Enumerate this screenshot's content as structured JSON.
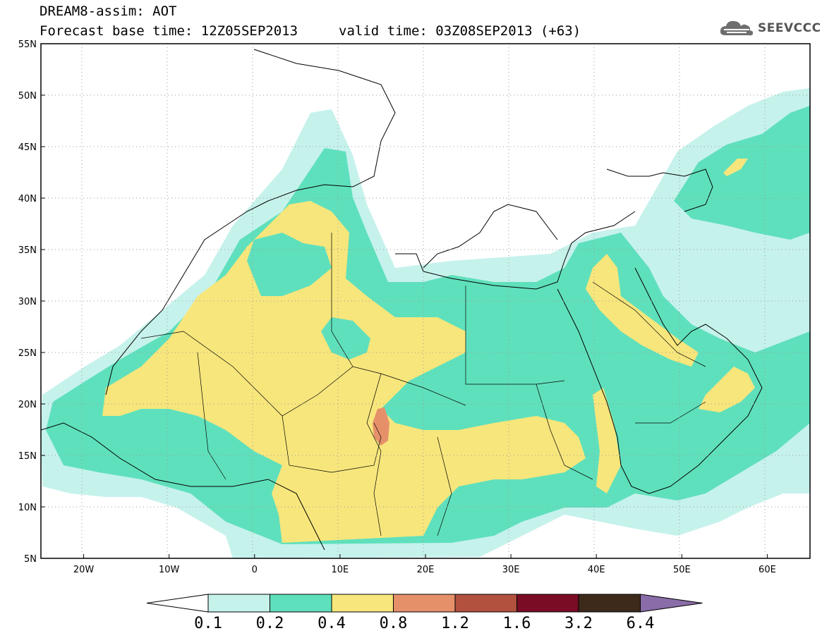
{
  "header": {
    "title": "DREAM8-assim: AOT",
    "base_time": "Forecast base time: 12Z05SEP2013",
    "valid_time": "valid time: 03Z08SEP2013 (+63)",
    "logo_text": "SEEVCCC",
    "logo_icon": "cloud-icon"
  },
  "map": {
    "variable": "AOT",
    "lon_range": [
      -25,
      65
    ],
    "lat_range": [
      5,
      55
    ],
    "lon_ticks": [
      "20W",
      "10W",
      "0",
      "10E",
      "20E",
      "30E",
      "40E",
      "50E",
      "60E"
    ],
    "lat_ticks": [
      "55N",
      "50N",
      "45N",
      "40N",
      "35N",
      "30N",
      "25N",
      "20N",
      "15N",
      "10N",
      "5N"
    ],
    "grid": true,
    "grid_style": "dotted"
  },
  "legend": {
    "labels": [
      "0.1",
      "0.2",
      "0.4",
      "0.8",
      "1.2",
      "1.6",
      "3.2",
      "6.4"
    ],
    "colors": [
      "#ffffff",
      "#c6f2ec",
      "#5fe0bc",
      "#f7e67c",
      "#e6906a",
      "#b2513e",
      "#7a0c26",
      "#3d2a1a",
      "#8a6ca8"
    ]
  }
}
